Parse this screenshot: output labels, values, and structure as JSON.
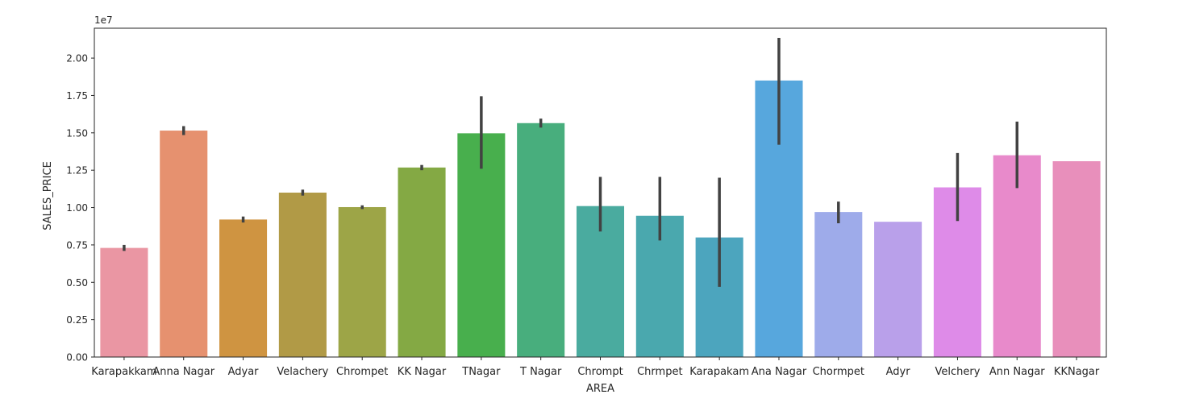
{
  "chart_data": {
    "type": "bar",
    "title": "",
    "xlabel": "AREA",
    "ylabel": "SALES_PRICE",
    "offset_label": "1e7",
    "ylim": [
      0,
      2.2
    ],
    "yticks": [
      "0.00",
      "0.25",
      "0.50",
      "0.75",
      "1.00",
      "1.25",
      "1.50",
      "1.75",
      "2.00"
    ],
    "categories": [
      "Karapakkam",
      "Anna Nagar",
      "Adyar",
      "Velachery",
      "Chrompet",
      "KK Nagar",
      "TNagar",
      "T Nagar",
      "Chrompt",
      "Chrmpet",
      "Karapakam",
      "Ana Nagar",
      "Chormpet",
      "Adyr",
      "Velchery",
      "Ann Nagar",
      "KKNagar"
    ],
    "values": [
      0.73,
      1.515,
      0.92,
      1.1,
      1.003,
      1.268,
      1.497,
      1.565,
      1.01,
      0.945,
      0.8,
      1.85,
      0.97,
      0.905,
      1.135,
      1.35,
      1.31
    ],
    "error_low": [
      0.71,
      1.485,
      0.9,
      1.08,
      0.99,
      1.25,
      1.26,
      1.535,
      0.84,
      0.78,
      0.47,
      1.42,
      0.895,
      null,
      0.91,
      1.13,
      null
    ],
    "error_high": [
      0.75,
      1.545,
      0.94,
      1.12,
      1.015,
      1.285,
      1.745,
      1.595,
      1.205,
      1.205,
      1.2,
      2.135,
      1.04,
      null,
      1.365,
      1.575,
      null
    ],
    "colors": [
      "#ea96a3",
      "#e6916f",
      "#cf9441",
      "#b19a46",
      "#9da547",
      "#84a944",
      "#48af4d",
      "#48ae7d",
      "#4aab9f",
      "#4aa8ae",
      "#4ca5be",
      "#57a7dd",
      "#9eabea",
      "#b9a0ea",
      "#de8be8",
      "#e88acb",
      "#e88fbb"
    ],
    "grid": false,
    "legend": "none"
  }
}
